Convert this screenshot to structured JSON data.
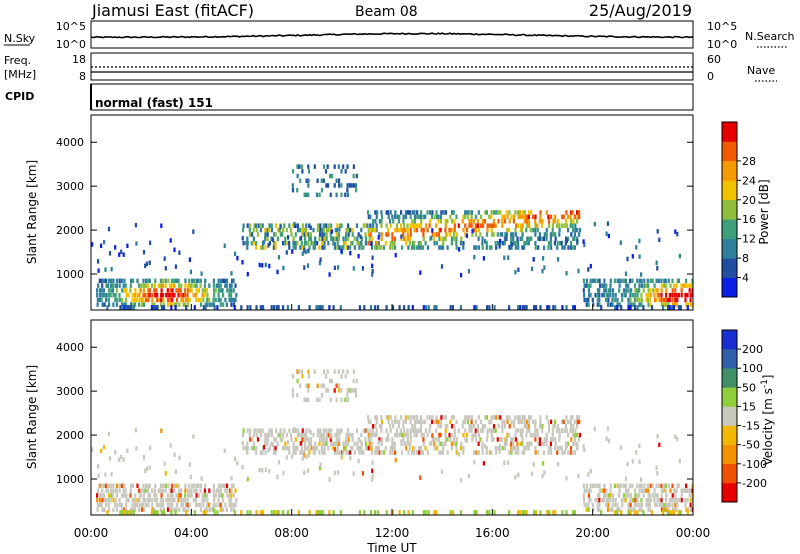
{
  "header": {
    "station": "Jiamusi East (fitACF)",
    "beam": "Beam 08",
    "date": "25/Aug/2019"
  },
  "strips": {
    "nsky_label": "N.Sky",
    "nsky_top": "10^5",
    "nsky_bottom": "10^0",
    "nsearch_label": "N.Search",
    "nsearch_top": "10^5",
    "nsearch_bottom": "10^0",
    "freq_label_1": "Freq.",
    "freq_label_2": "[MHz]",
    "freq_top": "18",
    "freq_bottom": "8",
    "nave_label": "Nave",
    "nave_top": "60",
    "nave_bottom": "0",
    "cpid_label": "CPID",
    "cpid_value": "normal (fast) 151"
  },
  "chart_data": [
    {
      "type": "heatmap",
      "title": "",
      "ylabel": "Slant Range [km]",
      "xlabel": "",
      "yticks": [
        "1000",
        "2000",
        "3000",
        "4000"
      ],
      "colorbar": {
        "label": "Power [dB]",
        "ticks": [
          "4",
          "8",
          "12",
          "16",
          "20",
          "24",
          "28"
        ],
        "colors": [
          "#0a1fe6",
          "#1f4fa0",
          "#2f7f9c",
          "#3f9f7a",
          "#8fbf3a",
          "#f2c200",
          "#f59a00",
          "#f05a00",
          "#e60000"
        ]
      },
      "features": [
        {
          "t0": 0.2,
          "t1": 5.5,
          "r0": 300,
          "r1": 900
        },
        {
          "t0": 6.0,
          "t1": 11.5,
          "r0": 1500,
          "r1": 2100
        },
        {
          "t0": 8.0,
          "t1": 10.5,
          "r0": 2700,
          "r1": 3500
        },
        {
          "t0": 11.0,
          "t1": 19.5,
          "r0": 1500,
          "r1": 2400
        },
        {
          "t0": 19.5,
          "t1": 24.0,
          "r0": 300,
          "r1": 900
        }
      ]
    },
    {
      "type": "heatmap",
      "title": "",
      "ylabel": "Slant Range [km]",
      "xlabel": "Time UT",
      "yticks": [
        "1000",
        "2000",
        "3000",
        "4000"
      ],
      "xticks": [
        "00:00",
        "04:00",
        "08:00",
        "12:00",
        "16:00",
        "20:00",
        "00:00"
      ],
      "colorbar": {
        "label": "Velocity [m s^-1]",
        "ticks": [
          "200",
          "100",
          "50",
          "15",
          "-15",
          "-50",
          "-100",
          "-200"
        ],
        "colors": [
          "#1a2fd0",
          "#2f5fa8",
          "#3f8f6a",
          "#8fcf3a",
          "#c8c8be",
          "#f2b800",
          "#f59000",
          "#f05000",
          "#e60000"
        ]
      }
    }
  ]
}
